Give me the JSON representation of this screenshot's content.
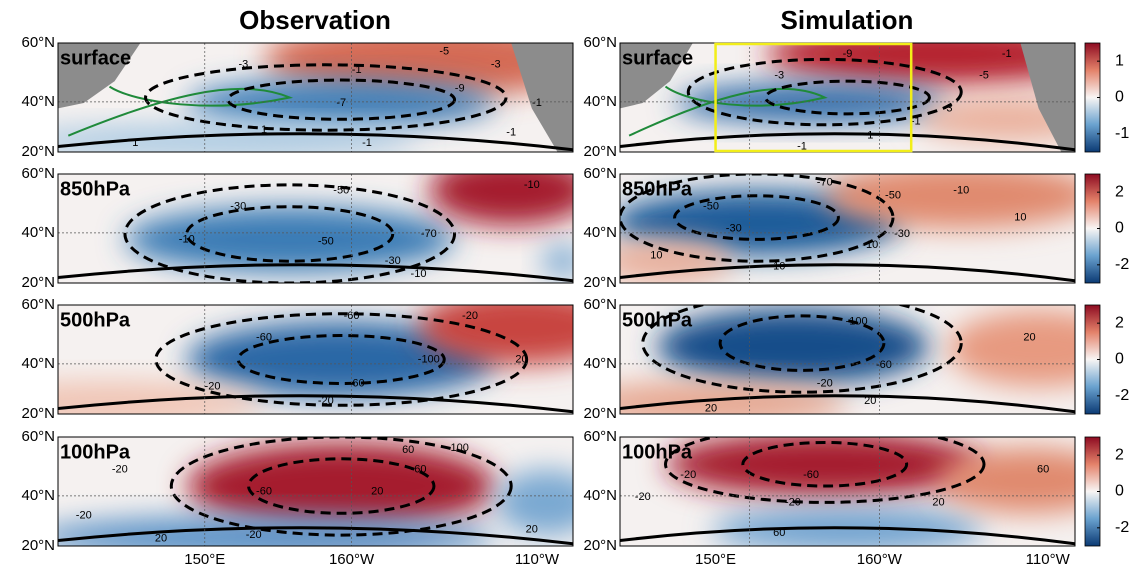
{
  "titles": [
    "Observation",
    "Simulation"
  ],
  "levels": [
    "surface",
    "850hPa",
    "500hPa",
    "100hPa"
  ],
  "lat_labels": [
    "60°N",
    "40°N",
    "20°N"
  ],
  "lon_labels": [
    "150°E",
    "160°W",
    "110°W"
  ],
  "colorbars": [
    {
      "lim": [
        -1.5,
        1.5
      ],
      "ticks": [
        1,
        0,
        -1
      ]
    },
    {
      "lim": [
        -3,
        3
      ],
      "ticks": [
        2,
        0,
        -2
      ]
    },
    {
      "lim": [
        -3,
        3
      ],
      "ticks": [
        2,
        0,
        -2
      ]
    },
    {
      "lim": [
        -3,
        3
      ],
      "ticks": [
        2,
        0,
        -2
      ]
    }
  ],
  "contour_labels": [
    [
      -3,
      -5,
      -1,
      -7,
      -9,
      -3,
      -1,
      1,
      1,
      -1,
      -1
    ],
    [
      -3,
      -9,
      -5,
      -3,
      -1,
      1,
      -1,
      -1
    ],
    [
      -30,
      -50,
      -10,
      -50,
      -70,
      -30,
      -10,
      -10
    ],
    [
      -50,
      -70,
      -30,
      -50,
      -10,
      -30,
      -10,
      10,
      10,
      10
    ],
    [
      -60,
      -60,
      -20,
      -100,
      -60,
      -20,
      -20,
      20
    ],
    [
      -100,
      -60,
      -20,
      20,
      20,
      20
    ],
    [
      -20,
      -60,
      -60,
      -20,
      100,
      20,
      20,
      -20,
      20,
      60
    ],
    [
      -20,
      -20,
      -60,
      -20,
      20,
      60,
      60
    ]
  ]
}
